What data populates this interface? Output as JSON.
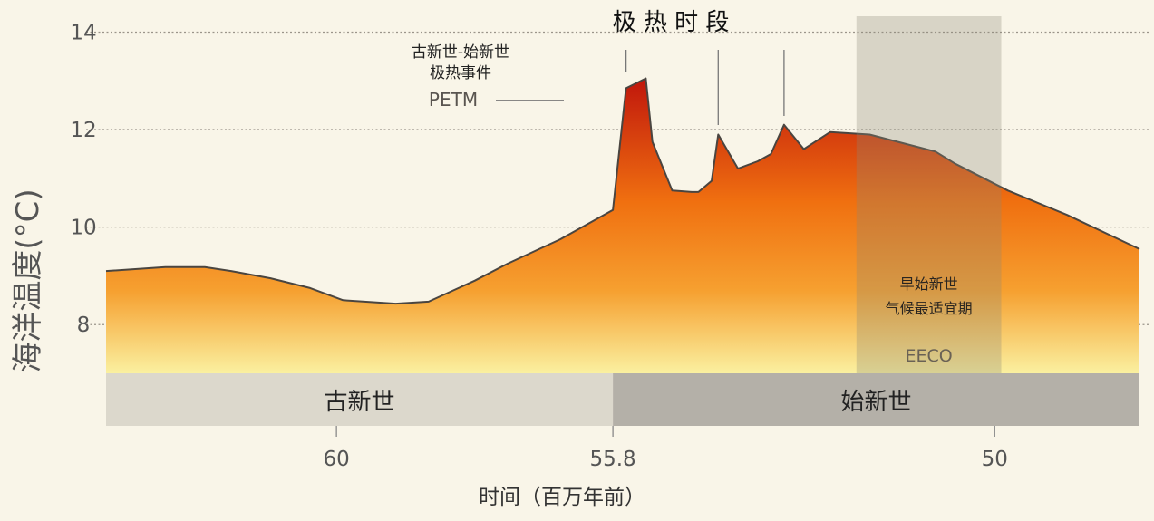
{
  "colors": {
    "background": "#f9f5e8",
    "gridline": "#9b958a",
    "outline": "#4a4540",
    "fill_top": "#c0160c",
    "fill_mid": "#f07010",
    "fill_low": "#f6a030",
    "fill_bottom": "#faf0a0",
    "paleocene_band": "#dcd8cc",
    "eocene_band": "#b4b0a8",
    "eeco_shade": "#8c8878"
  },
  "chart_data": {
    "type": "area",
    "xlabel": "时间（百万年前）",
    "ylabel": "海洋温度(°C)",
    "x_unit": "Ma",
    "x_reversed": true,
    "xlim": [
      63.5,
      47.8
    ],
    "ylim": [
      7.0,
      14.4
    ],
    "y_ticks": [
      8,
      10,
      12,
      14
    ],
    "y_tick_labels": [
      "8",
      "10",
      "12",
      "14"
    ],
    "x_ticks": [
      60,
      55.8,
      50
    ],
    "x_tick_labels": [
      "60",
      "55.8",
      "50"
    ],
    "grid": "horizontal dotted",
    "x": [
      63.5,
      62.6,
      62.0,
      61.6,
      61.0,
      60.4,
      59.9,
      59.1,
      58.6,
      57.9,
      57.4,
      56.6,
      55.8,
      55.6,
      55.3,
      55.2,
      54.9,
      54.6,
      54.5,
      54.3,
      54.2,
      53.9,
      53.6,
      53.4,
      53.2,
      52.9,
      52.5,
      51.9,
      50.9,
      50.6,
      49.8,
      48.9,
      47.8
    ],
    "y": [
      9.1,
      9.18,
      9.18,
      9.1,
      8.95,
      8.75,
      8.5,
      8.43,
      8.47,
      8.9,
      9.25,
      9.75,
      10.35,
      12.85,
      13.05,
      11.75,
      10.75,
      10.72,
      10.72,
      10.95,
      11.9,
      11.2,
      11.35,
      11.5,
      12.1,
      11.6,
      11.95,
      11.9,
      11.55,
      11.3,
      10.75,
      10.25,
      9.55
    ],
    "periods": [
      {
        "name": "古新世",
        "from": 63.5,
        "to": 55.8
      },
      {
        "name": "始新世",
        "from": 55.8,
        "to": 47.8
      }
    ],
    "shaded_interval": {
      "from": 52.1,
      "to": 49.9,
      "label_line1": "早始新世",
      "label_line2": "气候最适宜期",
      "label_abbr": "EECO"
    },
    "annotations": [
      {
        "text_line1": "古新世-始新世",
        "text_line2": "极热事件",
        "text_abbr": "PETM",
        "x": 55.6,
        "y": 12.6
      },
      {
        "text": "极 热 时 段",
        "markers_x": [
          55.6,
          54.2,
          53.2
        ]
      }
    ]
  }
}
